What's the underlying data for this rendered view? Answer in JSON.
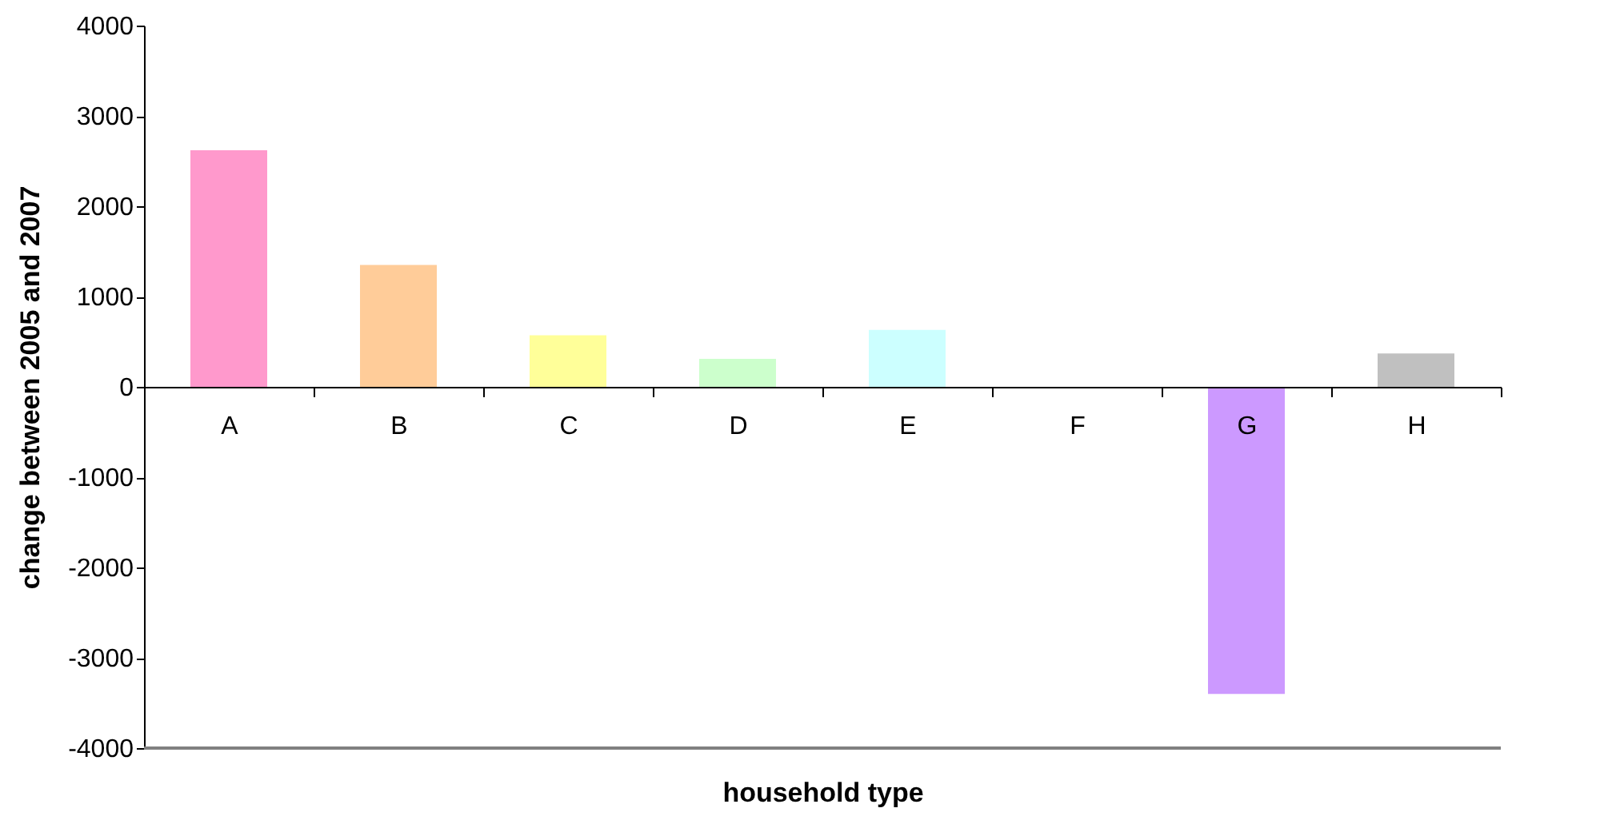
{
  "chart_data": {
    "type": "bar",
    "xlabel": "household type",
    "ylabel": "change between 2005 and 2007",
    "categories": [
      "A",
      "B",
      "C",
      "D",
      "E",
      "F",
      "G",
      "H"
    ],
    "values": [
      2620,
      1350,
      570,
      310,
      630,
      0,
      -3400,
      370
    ],
    "colors": [
      "#ff99cc",
      "#ffcc99",
      "#ffff99",
      "#ccffcc",
      "#ccffff",
      "#9999ff",
      "#cc99ff",
      "#c0c0c0"
    ],
    "ylim": [
      -4000,
      4000
    ],
    "yticks": [
      -4000,
      -3000,
      -2000,
      -1000,
      0,
      1000,
      2000,
      3000,
      4000
    ],
    "grid": false,
    "legend": false
  }
}
